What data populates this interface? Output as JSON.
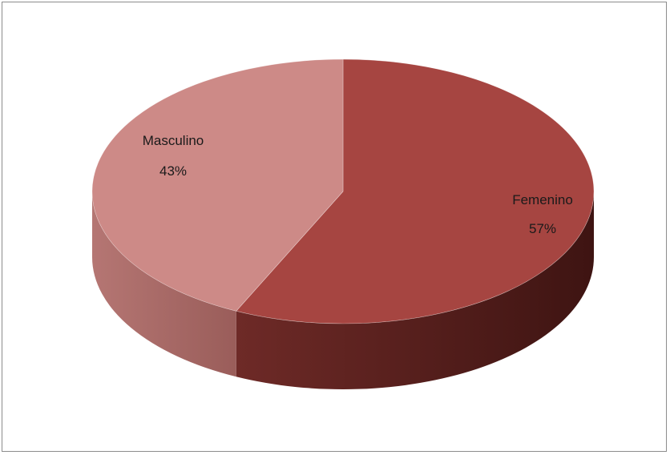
{
  "chart_data": {
    "type": "pie",
    "title": "",
    "slices": [
      {
        "label": "Femenino",
        "value": 57,
        "display": "57%",
        "color": "#a64541"
      },
      {
        "label": "Masculino",
        "value": 43,
        "display": "43%",
        "color": "#cd8a87"
      }
    ],
    "style": "3d",
    "legend": "none"
  }
}
